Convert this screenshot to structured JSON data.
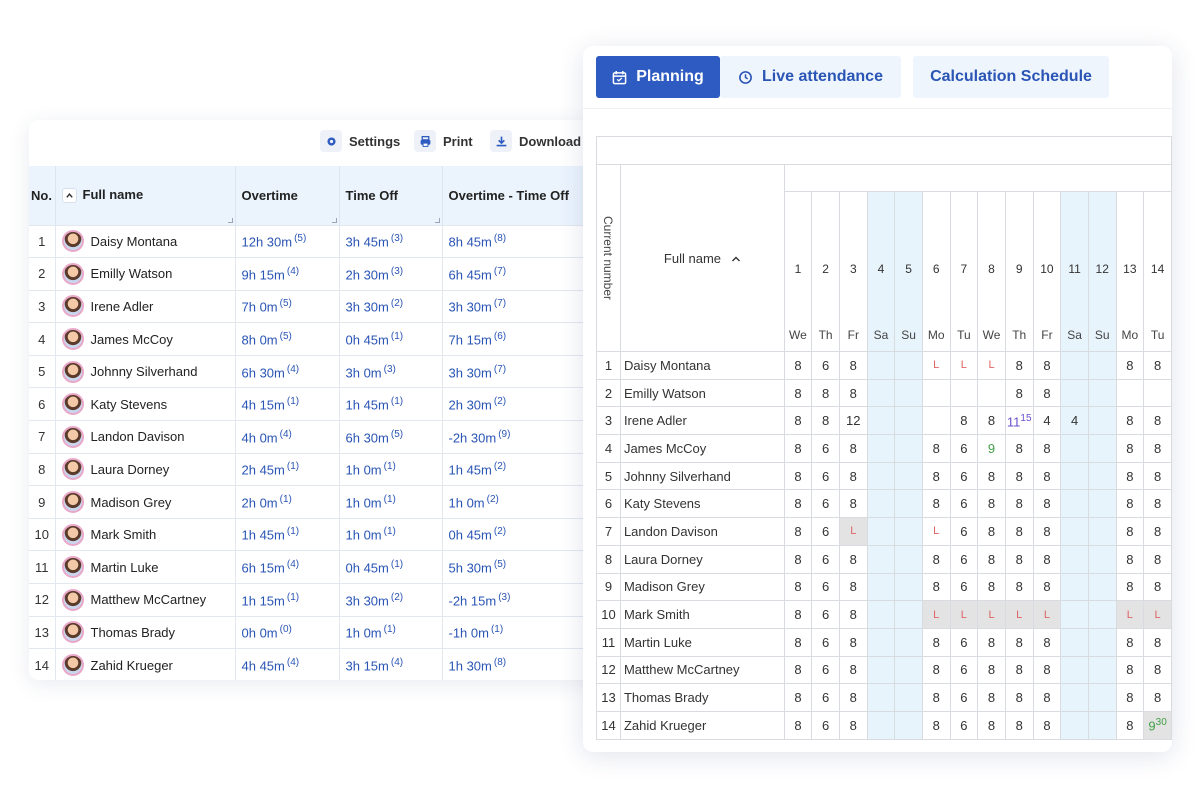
{
  "left_panel": {
    "toolbar": {
      "settings_label": "Settings",
      "print_label": "Print",
      "download_label": "Download"
    },
    "columns": [
      "No.",
      "Full name",
      "Overtime",
      "Time Off",
      "Overtime - Time Off"
    ],
    "rows": [
      {
        "no": "1",
        "name": "Daisy Montana",
        "overtime": "12h 30m",
        "overtime_count": "(5)",
        "timeoff": "3h 45m",
        "timeoff_count": "(3)",
        "diff": "8h 45m",
        "diff_count": "(8)"
      },
      {
        "no": "2",
        "name": "Emilly Watson",
        "overtime": "9h 15m",
        "overtime_count": "(4)",
        "timeoff": "2h 30m",
        "timeoff_count": "(3)",
        "diff": "6h 45m",
        "diff_count": "(7)"
      },
      {
        "no": "3",
        "name": "Irene Adler",
        "overtime": "7h 0m",
        "overtime_count": "(5)",
        "timeoff": "3h 30m",
        "timeoff_count": "(2)",
        "diff": "3h 30m",
        "diff_count": "(7)"
      },
      {
        "no": "4",
        "name": "James McCoy",
        "overtime": "8h 0m",
        "overtime_count": "(5)",
        "timeoff": "0h 45m",
        "timeoff_count": "(1)",
        "diff": "7h 15m",
        "diff_count": "(6)"
      },
      {
        "no": "5",
        "name": "Johnny Silverhand",
        "overtime": "6h 30m",
        "overtime_count": "(4)",
        "timeoff": "3h 0m",
        "timeoff_count": "(3)",
        "diff": "3h 30m",
        "diff_count": "(7)"
      },
      {
        "no": "6",
        "name": "Katy Stevens",
        "overtime": "4h 15m",
        "overtime_count": "(1)",
        "timeoff": "1h 45m",
        "timeoff_count": "(1)",
        "diff": "2h 30m",
        "diff_count": "(2)"
      },
      {
        "no": "7",
        "name": "Landon Davison",
        "overtime": "4h 0m",
        "overtime_count": "(4)",
        "timeoff": "6h 30m",
        "timeoff_count": "(5)",
        "diff": "-2h 30m",
        "diff_count": "(9)"
      },
      {
        "no": "8",
        "name": "Laura Dorney",
        "overtime": "2h 45m",
        "overtime_count": "(1)",
        "timeoff": "1h 0m",
        "timeoff_count": "(1)",
        "diff": "1h 45m",
        "diff_count": "(2)"
      },
      {
        "no": "9",
        "name": "Madison Grey",
        "overtime": "2h 0m",
        "overtime_count": "(1)",
        "timeoff": "1h 0m",
        "timeoff_count": "(1)",
        "diff": "1h 0m",
        "diff_count": "(2)"
      },
      {
        "no": "10",
        "name": "Mark Smith",
        "overtime": "1h 45m",
        "overtime_count": "(1)",
        "timeoff": "1h 0m",
        "timeoff_count": "(1)",
        "diff": "0h 45m",
        "diff_count": "(2)"
      },
      {
        "no": "11",
        "name": "Martin Luke",
        "overtime": "6h 15m",
        "overtime_count": "(4)",
        "timeoff": "0h 45m",
        "timeoff_count": "(1)",
        "diff": "5h 30m",
        "diff_count": "(5)"
      },
      {
        "no": "12",
        "name": "Matthew McCartney",
        "overtime": "1h 15m",
        "overtime_count": "(1)",
        "timeoff": "3h 30m",
        "timeoff_count": "(2)",
        "diff": "-2h 15m",
        "diff_count": "(3)"
      },
      {
        "no": "13",
        "name": "Thomas Brady",
        "overtime": "0h 0m",
        "overtime_count": "(0)",
        "timeoff": "1h 0m",
        "timeoff_count": "(1)",
        "diff": "-1h 0m",
        "diff_count": "(1)"
      },
      {
        "no": "14",
        "name": "Zahid Krueger",
        "overtime": "4h 45m",
        "overtime_count": "(4)",
        "timeoff": "3h 15m",
        "timeoff_count": "(4)",
        "diff": "1h 30m",
        "diff_count": "(8)"
      }
    ]
  },
  "right_panel": {
    "tabs": [
      {
        "label": "Planning",
        "icon": "calendar-icon",
        "active": true
      },
      {
        "label": "Live attendance",
        "icon": "clock-icon",
        "active": false
      },
      {
        "label": "Calculation Schedule",
        "active": false
      }
    ],
    "grid": {
      "current_number_label": "Current number",
      "full_name_label": "Full name",
      "days": [
        {
          "num": "1",
          "name": "We",
          "weekend": false
        },
        {
          "num": "2",
          "name": "Th",
          "weekend": false
        },
        {
          "num": "3",
          "name": "Fr",
          "weekend": false
        },
        {
          "num": "4",
          "name": "Sa",
          "weekend": true
        },
        {
          "num": "5",
          "name": "Su",
          "weekend": true
        },
        {
          "num": "6",
          "name": "Mo",
          "weekend": false
        },
        {
          "num": "7",
          "name": "Tu",
          "weekend": false
        },
        {
          "num": "8",
          "name": "We",
          "weekend": false
        },
        {
          "num": "9",
          "name": "Th",
          "weekend": false
        },
        {
          "num": "10",
          "name": "Fr",
          "weekend": false
        },
        {
          "num": "11",
          "name": "Sa",
          "weekend": true
        },
        {
          "num": "12",
          "name": "Su",
          "weekend": true
        },
        {
          "num": "13",
          "name": "Mo",
          "weekend": false
        },
        {
          "num": "14",
          "name": "Tu",
          "weekend": false
        }
      ],
      "rows": [
        {
          "no": "1",
          "name": "Daisy Montana",
          "cells": [
            "8",
            "6",
            "8",
            "",
            "",
            "L",
            "L",
            "L",
            "8",
            "8",
            "",
            "",
            "8",
            "8"
          ],
          "kinds": [
            "",
            "",
            "",
            "",
            "",
            "leave-pink",
            "leave-pink",
            "leave-pink",
            "",
            "",
            "",
            "",
            "",
            ""
          ]
        },
        {
          "no": "2",
          "name": "Emilly Watson",
          "cells": [
            "8",
            "8",
            "8",
            "",
            "",
            "",
            "",
            "",
            "8",
            "8",
            "",
            "",
            "",
            ""
          ],
          "kinds": [
            "",
            "",
            "",
            "",
            "",
            "",
            "",
            "",
            "",
            "",
            "",
            "",
            "",
            ""
          ]
        },
        {
          "no": "3",
          "name": "Irene Adler",
          "cells": [
            "8",
            "8",
            "12",
            "",
            "",
            "",
            "8",
            "8",
            "11|15",
            "4",
            "4",
            "",
            "8",
            "8"
          ],
          "kinds": [
            "",
            "",
            "",
            "",
            "",
            "",
            "",
            "",
            "ot",
            "",
            "",
            "",
            "",
            ""
          ]
        },
        {
          "no": "4",
          "name": "James McCoy",
          "cells": [
            "8",
            "6",
            "8",
            "",
            "",
            "8",
            "6",
            "9",
            "8",
            "8",
            "",
            "",
            "8",
            "8"
          ],
          "kinds": [
            "",
            "",
            "",
            "",
            "",
            "",
            "",
            "green",
            "",
            "",
            "",
            "",
            "",
            ""
          ]
        },
        {
          "no": "5",
          "name": "Johnny Silverhand",
          "cells": [
            "8",
            "6",
            "8",
            "",
            "",
            "8",
            "6",
            "8",
            "8",
            "8",
            "",
            "",
            "8",
            "8"
          ],
          "kinds": [
            "",
            "",
            "",
            "",
            "",
            "",
            "",
            "",
            "",
            "",
            "",
            "",
            "",
            ""
          ]
        },
        {
          "no": "6",
          "name": "Katy Stevens",
          "cells": [
            "8",
            "6",
            "8",
            "",
            "",
            "8",
            "6",
            "8",
            "8",
            "8",
            "",
            "",
            "8",
            "8"
          ],
          "kinds": [
            "",
            "",
            "",
            "",
            "",
            "",
            "",
            "",
            "",
            "",
            "",
            "",
            "",
            ""
          ]
        },
        {
          "no": "7",
          "name": "Landon Davison",
          "cells": [
            "8",
            "6",
            "L",
            "",
            "",
            "L",
            "6",
            "8",
            "8",
            "8",
            "",
            "",
            "8",
            "8"
          ],
          "kinds": [
            "",
            "",
            "leave-grey",
            "",
            "",
            "leave-pink",
            "",
            "",
            "",
            "",
            "",
            "",
            "",
            ""
          ]
        },
        {
          "no": "8",
          "name": "Laura Dorney",
          "cells": [
            "8",
            "6",
            "8",
            "",
            "",
            "8",
            "6",
            "8",
            "8",
            "8",
            "",
            "",
            "8",
            "8"
          ],
          "kinds": [
            "",
            "",
            "",
            "",
            "",
            "",
            "",
            "",
            "",
            "",
            "",
            "",
            "",
            ""
          ]
        },
        {
          "no": "9",
          "name": "Madison Grey",
          "cells": [
            "8",
            "6",
            "8",
            "",
            "",
            "8",
            "6",
            "8",
            "8",
            "8",
            "",
            "",
            "8",
            "8"
          ],
          "kinds": [
            "",
            "",
            "",
            "",
            "",
            "",
            "",
            "",
            "",
            "",
            "",
            "",
            "",
            ""
          ]
        },
        {
          "no": "10",
          "name": "Mark Smith",
          "cells": [
            "8",
            "6",
            "8",
            "",
            "",
            "L",
            "L",
            "L",
            "L",
            "L",
            "",
            "",
            "L",
            "L"
          ],
          "kinds": [
            "",
            "",
            "",
            "",
            "",
            "leave-grey",
            "leave-grey",
            "leave-grey",
            "leave-grey",
            "leave-grey",
            "",
            "",
            "leave-grey",
            "leave-grey"
          ],
          "grey_row": true
        },
        {
          "no": "11",
          "name": "Martin Luke",
          "cells": [
            "8",
            "6",
            "8",
            "",
            "",
            "8",
            "6",
            "8",
            "8",
            "8",
            "",
            "",
            "8",
            "8"
          ],
          "kinds": [
            "",
            "",
            "",
            "",
            "",
            "",
            "",
            "",
            "",
            "",
            "",
            "",
            "",
            ""
          ]
        },
        {
          "no": "12",
          "name": "Matthew McCartney",
          "cells": [
            "8",
            "6",
            "8",
            "",
            "",
            "8",
            "6",
            "8",
            "8",
            "8",
            "",
            "",
            "8",
            "8"
          ],
          "kinds": [
            "",
            "",
            "",
            "",
            "",
            "",
            "",
            "",
            "",
            "",
            "",
            "",
            "",
            ""
          ]
        },
        {
          "no": "13",
          "name": "Thomas Brady",
          "cells": [
            "8",
            "6",
            "8",
            "",
            "",
            "8",
            "6",
            "8",
            "8",
            "8",
            "",
            "",
            "8",
            "8"
          ],
          "kinds": [
            "",
            "",
            "",
            "",
            "",
            "",
            "",
            "",
            "",
            "",
            "",
            "",
            "",
            ""
          ]
        },
        {
          "no": "14",
          "name": "Zahid Krueger",
          "cells": [
            "8",
            "6",
            "8",
            "",
            "",
            "8",
            "6",
            "8",
            "8",
            "8",
            "",
            "",
            "8",
            "9|30"
          ],
          "kinds": [
            "",
            "",
            "",
            "",
            "",
            "",
            "",
            "",
            "",
            "",
            "",
            "",
            "",
            "greenbg"
          ]
        }
      ]
    }
  }
}
